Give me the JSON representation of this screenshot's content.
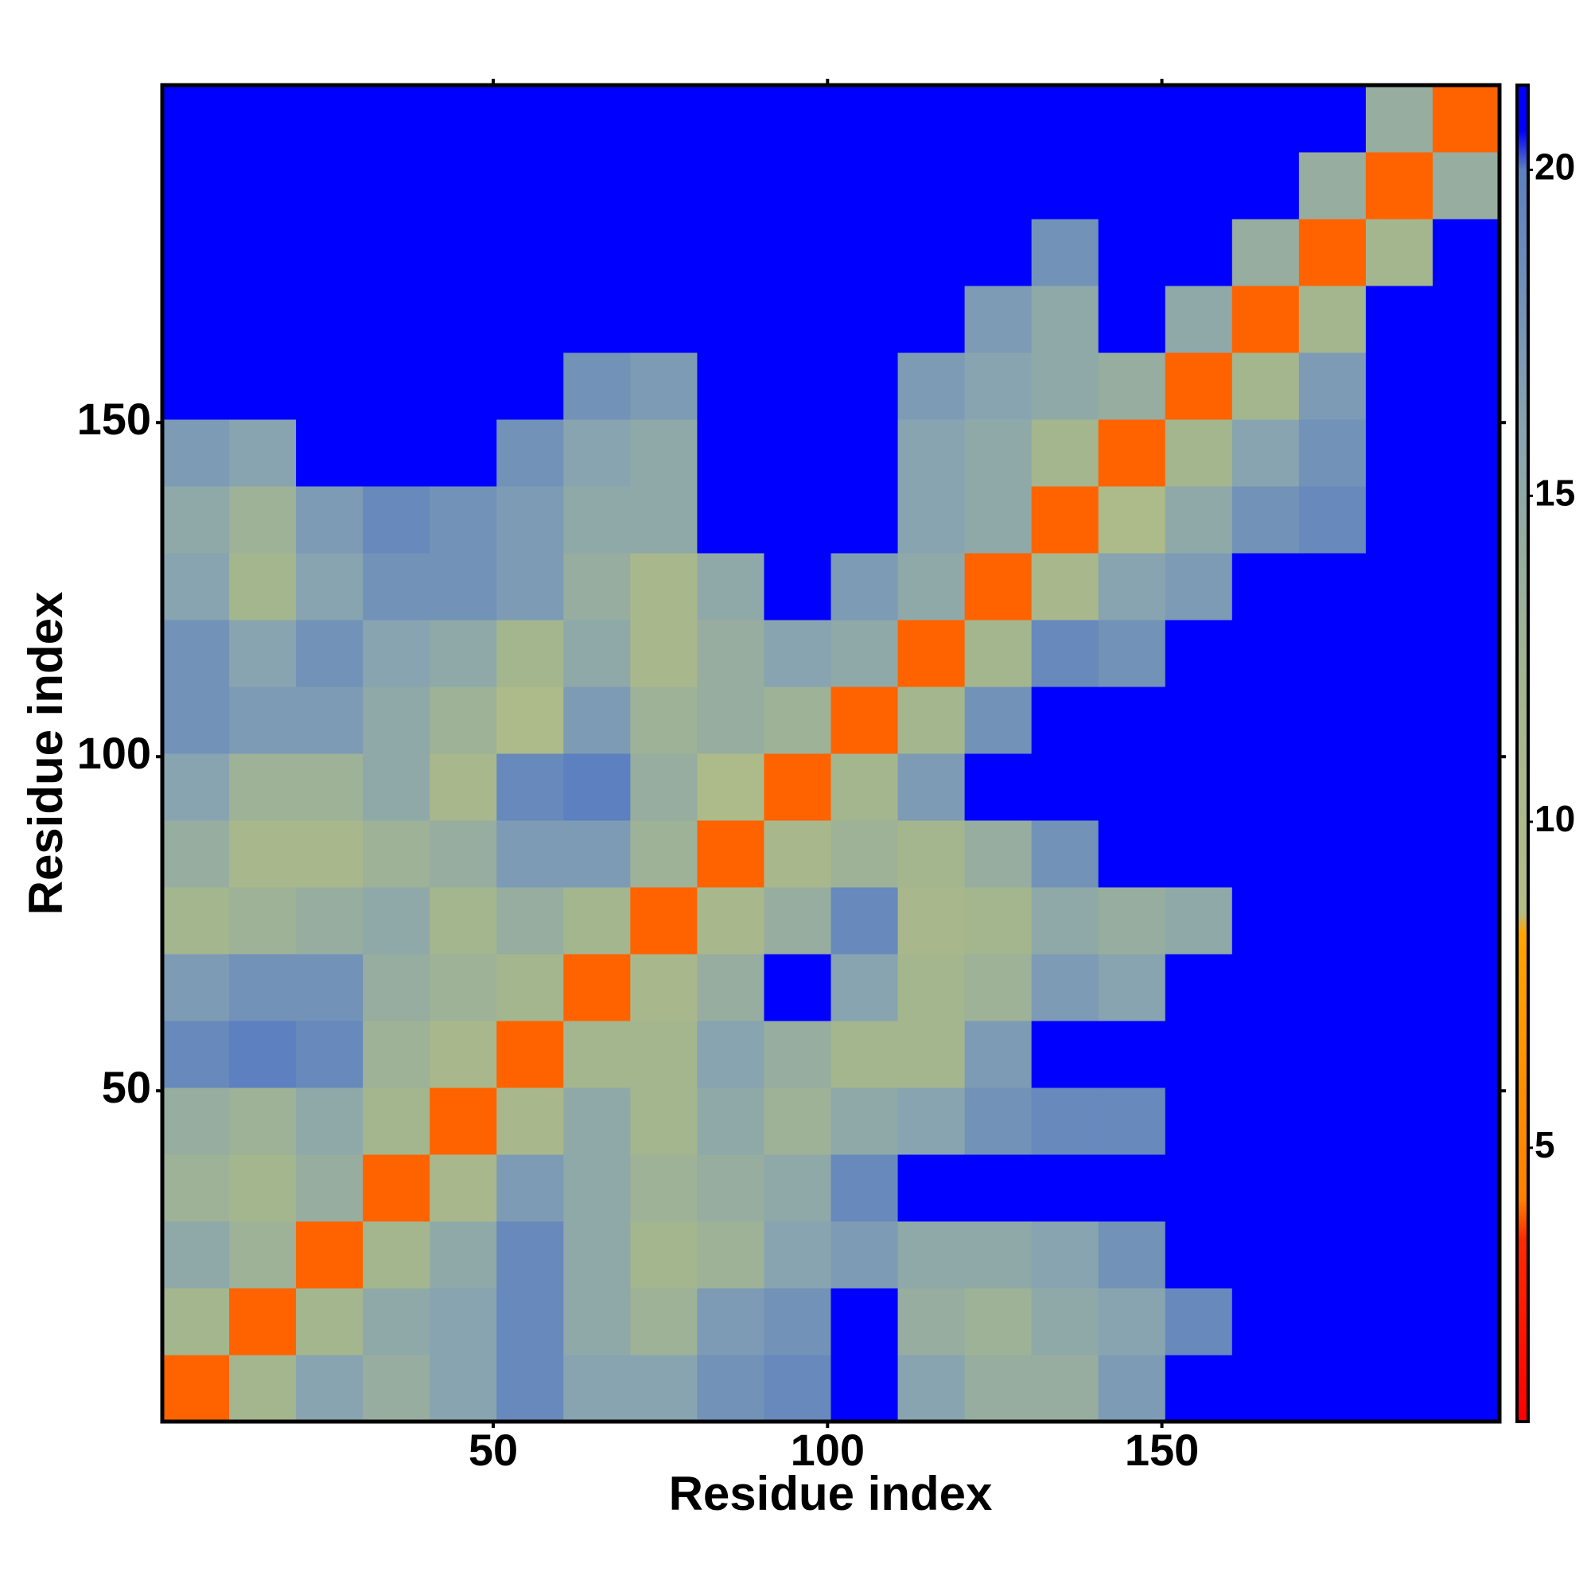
{
  "chart_data": {
    "type": "heatmap",
    "xlabel": "Residue index",
    "ylabel": "Residue index",
    "xlim": [
      0.5,
      200.5
    ],
    "ylim": [
      0.5,
      200.5
    ],
    "xticks": [
      50,
      100,
      150
    ],
    "yticks": [
      50,
      100,
      150
    ],
    "xbins": [
      0.5,
      10.5,
      20.5,
      30.5,
      40.5,
      50.5,
      60.5,
      70.5,
      80.5,
      90.5,
      100.5,
      110.5,
      120.5,
      130.5,
      140.5,
      150.5,
      160.5,
      170.5,
      180.5,
      190.5,
      200.5
    ],
    "ybins": [
      0.5,
      10.5,
      20.5,
      30.5,
      40.5,
      50.5,
      60.5,
      70.5,
      80.5,
      90.5,
      100.5,
      110.5,
      120.5,
      130.5,
      140.5,
      150.5,
      160.5,
      170.5,
      180.5,
      190.5,
      200.5
    ],
    "values": [
      [
        4,
        12,
        16,
        14,
        16,
        19,
        16,
        16,
        18,
        19,
        21,
        16,
        14,
        14,
        17,
        21,
        21,
        21,
        21,
        21
      ],
      [
        12,
        4,
        12,
        15,
        16,
        19,
        15,
        13,
        17,
        18,
        21,
        14,
        13,
        15,
        16,
        19,
        21,
        21,
        21,
        21
      ],
      [
        15,
        13,
        4,
        12,
        15,
        19,
        15,
        12,
        13,
        16,
        17,
        15,
        15,
        16,
        18,
        21,
        21,
        21,
        21,
        21
      ],
      [
        13,
        12,
        14,
        4,
        11,
        17,
        15,
        13,
        14,
        15,
        19,
        21,
        21,
        21,
        21,
        21,
        21,
        21,
        21,
        21
      ],
      [
        14,
        13,
        15,
        12,
        4,
        11,
        15,
        12,
        15,
        13,
        15,
        16,
        18,
        19,
        19,
        21,
        21,
        21,
        21,
        21
      ],
      [
        19,
        20,
        19,
        13,
        11,
        4,
        12,
        12,
        16,
        14,
        12,
        12,
        17,
        21,
        21,
        21,
        21,
        21,
        21,
        21
      ],
      [
        17,
        18,
        18,
        14,
        13,
        12,
        4,
        11,
        14,
        21,
        16,
        12,
        13,
        17,
        16,
        21,
        21,
        21,
        21,
        21
      ],
      [
        12,
        13,
        14,
        15,
        12,
        14,
        12,
        4,
        11,
        14,
        19,
        11,
        12,
        15,
        14,
        15,
        21,
        21,
        21,
        21
      ],
      [
        14,
        11,
        11,
        13,
        14,
        17,
        17,
        13,
        4,
        11,
        13,
        12,
        14,
        18,
        21,
        21,
        21,
        21,
        21,
        21
      ],
      [
        16,
        13,
        13,
        15,
        11,
        19,
        20,
        14,
        10,
        4,
        12,
        17,
        21,
        21,
        21,
        21,
        21,
        21,
        21,
        21
      ],
      [
        18,
        17,
        17,
        15,
        13,
        10,
        17,
        13,
        14,
        13,
        4,
        12,
        18,
        21,
        21,
        21,
        21,
        21,
        21,
        21
      ],
      [
        18,
        16,
        18,
        16,
        15,
        12,
        15,
        11,
        14,
        16,
        15,
        4,
        12,
        19,
        18,
        21,
        21,
        21,
        21,
        21
      ],
      [
        16,
        12,
        16,
        18,
        18,
        17,
        14,
        11,
        15,
        21,
        17,
        15,
        4,
        11,
        16,
        17,
        21,
        21,
        21,
        21
      ],
      [
        15,
        13,
        17,
        19,
        18,
        17,
        15,
        15,
        21,
        21,
        21,
        16,
        15,
        4,
        10,
        15,
        18,
        19,
        21,
        21
      ],
      [
        17,
        16,
        21,
        21,
        21,
        18,
        16,
        15,
        21,
        21,
        21,
        16,
        15,
        12,
        4,
        12,
        16,
        18,
        21,
        21
      ],
      [
        21,
        21,
        21,
        21,
        21,
        21,
        18,
        17,
        21,
        21,
        21,
        17,
        16,
        15,
        14,
        4,
        12,
        17,
        21,
        21
      ],
      [
        21,
        21,
        21,
        21,
        21,
        21,
        21,
        21,
        21,
        21,
        21,
        21,
        17,
        15,
        21,
        15,
        4,
        12,
        21,
        21
      ],
      [
        21,
        21,
        21,
        21,
        21,
        21,
        21,
        21,
        21,
        21,
        21,
        21,
        21,
        18,
        21,
        21,
        14,
        4,
        12,
        21
      ],
      [
        21,
        21,
        21,
        21,
        21,
        21,
        21,
        21,
        21,
        21,
        21,
        21,
        21,
        21,
        21,
        21,
        21,
        14,
        4,
        14
      ],
      [
        21,
        21,
        21,
        21,
        21,
        21,
        21,
        21,
        21,
        21,
        21,
        21,
        21,
        21,
        21,
        21,
        21,
        21,
        14,
        4
      ]
    ],
    "colorbar": {
      "lim": [
        0.8,
        21.3
      ],
      "ticks": [
        5,
        10,
        15,
        20
      ],
      "stops": [
        {
          "value": 0.8,
          "color": "#ff0000"
        },
        {
          "value": 3.6,
          "color": "#ff2a00"
        },
        {
          "value": 4.2,
          "color": "#ff8000"
        },
        {
          "value": 8.3,
          "color": "#ffa500"
        },
        {
          "value": 8.6,
          "color": "#b4bc86"
        },
        {
          "value": 12,
          "color": "#a4b68e"
        },
        {
          "value": 16,
          "color": "#88a4b0"
        },
        {
          "value": 20,
          "color": "#5c80c0"
        },
        {
          "value": 20.6,
          "color": "#0000ff"
        },
        {
          "value": 21.3,
          "color": "#0000ff"
        }
      ]
    }
  }
}
